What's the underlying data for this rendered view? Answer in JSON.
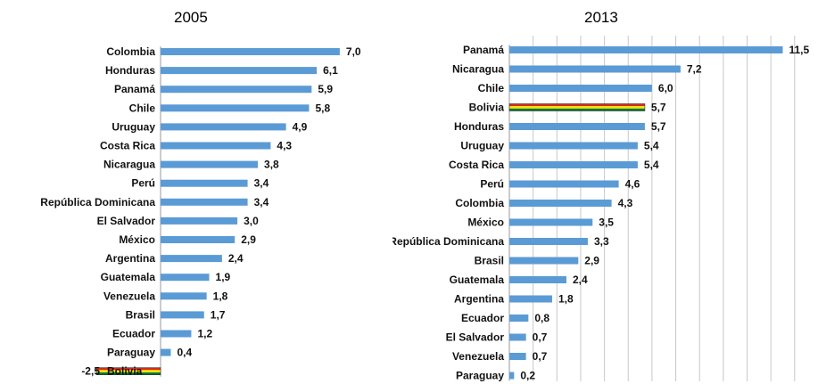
{
  "colors": {
    "bar": "#5b9bd5",
    "bar_stroke": "#4a86bf",
    "gridline": "#c8c8c8",
    "bolivia_flag": [
      "#d52b1e",
      "#f9e300",
      "#007934"
    ]
  },
  "chart_data": [
    {
      "type": "bar",
      "orientation": "horizontal",
      "title": "2005",
      "categories": [
        "Colombia",
        "Honduras",
        "Panamá",
        "Chile",
        "Uruguay",
        "Costa Rica",
        "Nicaragua",
        "Perú",
        "República Dominicana",
        "El Salvador",
        "México",
        "Argentina",
        "Guatemala",
        "Venezuela",
        "Brasil",
        "Ecuador",
        "Paraguay",
        "Bolivia"
      ],
      "values": [
        7.0,
        6.1,
        5.9,
        5.8,
        4.9,
        4.3,
        3.8,
        3.4,
        3.4,
        3.0,
        2.9,
        2.4,
        1.9,
        1.8,
        1.7,
        1.2,
        0.4,
        -2.5
      ],
      "value_labels": [
        "7,0",
        "6,1",
        "5,9",
        "5,8",
        "4,9",
        "4,3",
        "3,8",
        "3,4",
        "3,4",
        "3,0",
        "2,9",
        "2,4",
        "1,9",
        "1,8",
        "1,7",
        "1,2",
        "0,4",
        "-2,5"
      ],
      "highlight": "Bolivia",
      "xlim": [
        -2.5,
        7.5
      ],
      "grid": false
    },
    {
      "type": "bar",
      "orientation": "horizontal",
      "title": "2013",
      "categories": [
        "Panamá",
        "Nicaragua",
        "Chile",
        "Bolivia",
        "Honduras",
        "Uruguay",
        "Costa Rica",
        "Perú",
        "Colombia",
        "México",
        "República Dominicana",
        "Brasil",
        "Guatemala",
        "Argentina",
        "Ecuador",
        "El Salvador",
        "Venezuela",
        "Paraguay"
      ],
      "values": [
        11.5,
        7.2,
        6.0,
        5.7,
        5.7,
        5.4,
        5.4,
        4.6,
        4.3,
        3.5,
        3.3,
        2.9,
        2.4,
        1.8,
        0.8,
        0.7,
        0.7,
        0.2
      ],
      "value_labels": [
        "11,5",
        "7,2",
        "6,0",
        "5,7",
        "5,7",
        "5,4",
        "5,4",
        "4,6",
        "4,3",
        "3,5",
        "3,3",
        "2,9",
        "2,4",
        "1,8",
        "0,8",
        "0,7",
        "0,7",
        "0,2"
      ],
      "highlight": "Bolivia",
      "xlim": [
        0,
        12
      ],
      "grid": true
    }
  ]
}
